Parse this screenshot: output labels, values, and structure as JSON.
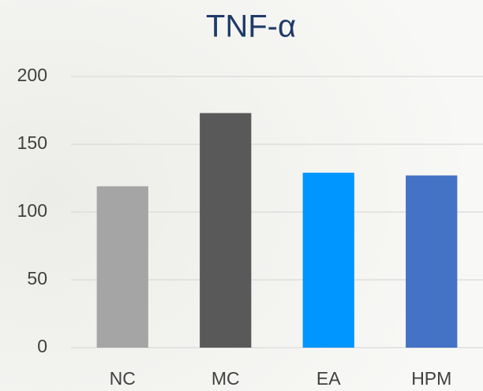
{
  "chart_data": {
    "type": "bar",
    "title": "TNF-α",
    "categories": [
      "NC",
      "MC",
      "EA",
      "HPM"
    ],
    "values": [
      119,
      173,
      129,
      127
    ],
    "colors": [
      "#a5a5a5",
      "#595959",
      "#0096ff",
      "#4472c4"
    ],
    "ylim": [
      0,
      200
    ],
    "yticks": [
      0,
      50,
      100,
      150,
      200
    ],
    "grid": true
  }
}
